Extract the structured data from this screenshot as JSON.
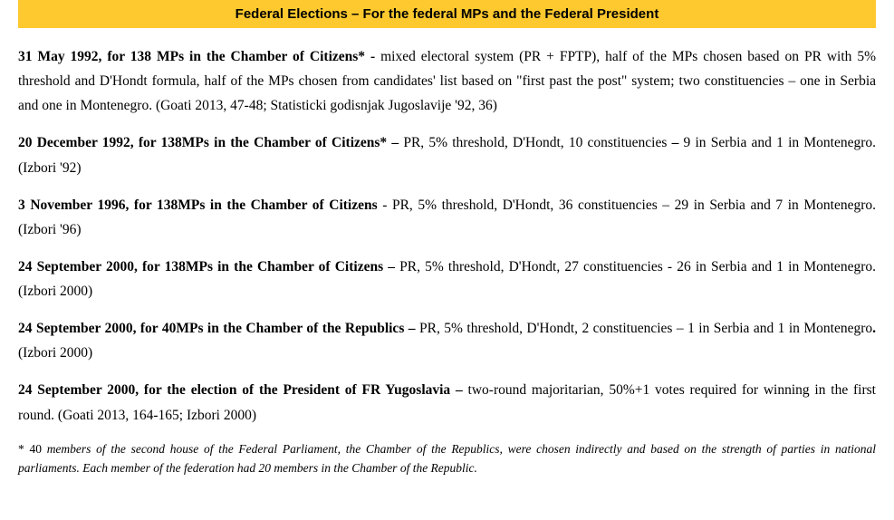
{
  "header": {
    "title": "Federal Elections – For the federal MPs and the Federal President",
    "bg_color": "#fdc92e",
    "text_color": "#000000",
    "font_size": 15
  },
  "entries": [
    {
      "bold": "31 May 1992, for 138 MPs in the Chamber of Citizens* - ",
      "rest": "mixed electoral system (PR + FPTP), half of the MPs chosen based on PR with 5% threshold and D'Hondt formula, half of the MPs chosen from candidates' list based on \"first past the post\" system; two constituencies – one in Serbia and one in Montenegro. (Goati 2013, 47-48; Statisticki godisnjak Jugoslavije '92, 36)"
    },
    {
      "bold": "20 December 1992, for 138MPs in the Chamber of Citizens* – ",
      "mid": "PR, 5% threshold, D'Hondt, 10 constituencies ",
      "bold2": "– ",
      "rest": "9 in Serbia and 1 in Montenegro. (Izbori '92)"
    },
    {
      "bold": "3 November 1996, for 138MPs in the Chamber of Citizens ",
      "rest": "- PR, 5% threshold, D'Hondt, 36 constituencies – 29 in Serbia and 7 in Montenegro. (Izbori '96)"
    },
    {
      "bold": "24 September 2000, for 138MPs in the Chamber of Citizens – ",
      "rest": "PR, 5% threshold, D'Hondt, 27 constituencies - 26 in Serbia and 1 in Montenegro. (Izbori 2000)"
    },
    {
      "bold": "24 September 2000, for 40MPs in the Chamber of the Republics – ",
      "mid": "PR, 5% threshold, D'Hondt, 2 constituencies – 1 in Serbia and 1 in Montenegro",
      "bold2": ". ",
      "rest": "(Izbori 2000)"
    },
    {
      "bold": "24 September 2000, for the election of the President of FR Yugoslavia – ",
      "rest": "two-round majoritarian, 50%+1 votes required for winning in the first round. (Goati 2013, 164-165; Izbori 2000)"
    }
  ],
  "footnote": {
    "lead": "* 40 ",
    "text": "members of the second house of the Federal Parliament, the Chamber of the Republics, were chosen indirectly and based on the strength of parties in national parliaments. Each member of the federation had 20 members in the Chamber of the Republic."
  },
  "styles": {
    "body_font_size": 15.5,
    "body_line_height": 1.75,
    "footnote_font_size": 13.5,
    "text_color": "#000000",
    "background_color": "#ffffff"
  }
}
